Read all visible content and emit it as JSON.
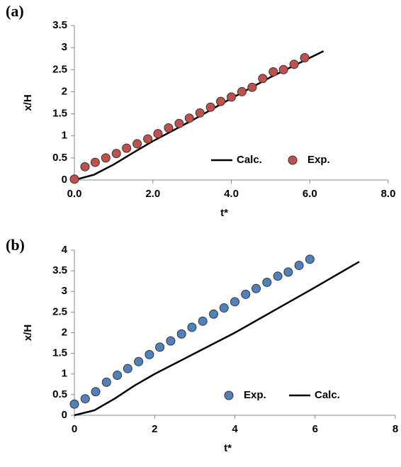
{
  "chart_data": [
    {
      "type": "line",
      "panel_label": "(a)",
      "xlabel": "t*",
      "ylabel": "x/H",
      "xlim": [
        0,
        8
      ],
      "ylim": [
        0,
        3.5
      ],
      "xticks": [
        {
          "value": 0,
          "label": "0.0"
        },
        {
          "value": 2,
          "label": "2.0"
        },
        {
          "value": 4,
          "label": "4.0"
        },
        {
          "value": 6,
          "label": "6.0"
        },
        {
          "value": 8,
          "label": "8.0"
        }
      ],
      "yticks": [
        0,
        0.5,
        1,
        1.5,
        2,
        2.5,
        3,
        3.5
      ],
      "legend_position": "lower-right",
      "series": [
        {
          "name": "Calc.",
          "color": "#000000",
          "style": "line",
          "x": [
            0,
            0.5,
            1,
            1.5,
            2,
            3,
            4,
            5,
            6.35
          ],
          "values": [
            0,
            0.12,
            0.35,
            0.62,
            0.88,
            1.35,
            1.85,
            2.33,
            2.92
          ]
        },
        {
          "name": "Exp.",
          "color": "#c0504d",
          "style": "marker",
          "x": [
            0,
            0.27,
            0.53,
            0.8,
            1.07,
            1.33,
            1.6,
            1.87,
            2.13,
            2.4,
            2.67,
            2.93,
            3.2,
            3.47,
            3.73,
            4.0,
            4.27,
            4.53,
            4.8,
            5.07,
            5.33,
            5.6,
            5.87
          ],
          "values": [
            0.02,
            0.3,
            0.4,
            0.5,
            0.6,
            0.72,
            0.82,
            0.93,
            1.05,
            1.18,
            1.28,
            1.4,
            1.52,
            1.65,
            1.78,
            1.88,
            2.0,
            2.1,
            2.3,
            2.45,
            2.5,
            2.62,
            2.77
          ]
        }
      ]
    },
    {
      "type": "line",
      "panel_label": "(b)",
      "xlabel": "t*",
      "ylabel": "x/H",
      "xlim": [
        0,
        8
      ],
      "ylim": [
        0,
        4
      ],
      "xticks": [
        0,
        2,
        4,
        6,
        8
      ],
      "yticks": [
        0,
        0.5,
        1,
        1.5,
        2,
        2.5,
        3,
        3.5,
        4
      ],
      "legend_position": "lower-right",
      "series": [
        {
          "name": "Exp.",
          "color": "#4f81bd",
          "style": "marker",
          "x": [
            0,
            0.27,
            0.53,
            0.8,
            1.07,
            1.33,
            1.6,
            1.87,
            2.13,
            2.4,
            2.67,
            2.93,
            3.2,
            3.47,
            3.73,
            4.0,
            4.27,
            4.53,
            4.8,
            5.07,
            5.33,
            5.6,
            5.87
          ],
          "values": [
            0.27,
            0.4,
            0.57,
            0.8,
            0.97,
            1.13,
            1.3,
            1.47,
            1.65,
            1.8,
            1.97,
            2.13,
            2.28,
            2.45,
            2.6,
            2.75,
            2.93,
            3.07,
            3.22,
            3.37,
            3.47,
            3.63,
            3.78
          ]
        },
        {
          "name": "Calc.",
          "color": "#000000",
          "style": "line",
          "x": [
            0,
            0.5,
            1,
            1.5,
            2,
            3,
            4,
            5,
            6,
            7.1
          ],
          "values": [
            0,
            0.12,
            0.4,
            0.72,
            1.0,
            1.5,
            2.0,
            2.55,
            3.1,
            3.72
          ]
        }
      ]
    }
  ]
}
